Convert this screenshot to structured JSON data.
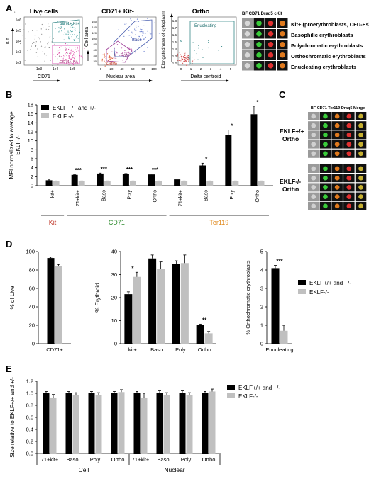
{
  "panels": {
    "A": "A",
    "B": "B",
    "C": "C",
    "D": "D",
    "E": "E"
  },
  "panel_a": {
    "plot1": {
      "title": "Live cells",
      "xlabel": "CD71",
      "ylabel": "Kit",
      "gate_label": "CD71+ Kit-",
      "gate_label2": "CD71+ Kit+",
      "xticks": [
        "1e3",
        "1e4",
        "1e5"
      ],
      "yticks": [
        "1e6",
        "1e5",
        "1e4",
        "1e3",
        "1e2"
      ]
    },
    "plot2": {
      "title": "CD71+ Kit-",
      "xlabel": "Nuclear area",
      "ylabel": "Cell area",
      "gate_baso": "Baso",
      "gate_poly": "Poly",
      "gate_ortho": "Ortho",
      "xticks": [
        "0",
        "20",
        "40",
        "60",
        "80",
        "100"
      ],
      "yticks": [
        "20",
        "40",
        "60",
        "80",
        "100",
        "120",
        "140",
        "160"
      ]
    },
    "plot3": {
      "title": "Ortho",
      "xlabel": "Delta centroid",
      "ylabel": "Elongatedness of cytoplasm",
      "gate_label": "Enucleating",
      "xticks": [
        "0",
        "1",
        "2",
        "3",
        "4",
        "5"
      ],
      "yticks": [
        "1.8",
        "1.7",
        "1.6",
        "1.5",
        "1.4",
        "1.3",
        "1.2"
      ]
    },
    "image_header": "BF CD71 Draq5 cKit",
    "legend": [
      "Kit+ (proerythroblasts, CFU-Es)",
      "Basophilic erythroblasts",
      "Polychromatic erythroblasts",
      "Orthochromatic erythroblasts",
      "Enucleating erythroblasts"
    ]
  },
  "panel_c": {
    "header": "BF CD71 Ter119 Draq5 Merge",
    "group1": "EKLF+/+ Ortho",
    "group1_line1": "EKLF+/+",
    "group1_line2": "Ortho",
    "group2_line1": "EKLF-/-",
    "group2_line2": "Ortho"
  },
  "colors": {
    "black": "#000000",
    "grey": "#c0c0c0",
    "kit": "#c0392b",
    "cd71": "#2e8b2e",
    "ter119": "#e08a1e"
  },
  "chart_data": [
    {
      "type": "bar",
      "panel": "B",
      "ylabel": "MFI normalized to average EKLF-/-",
      "ylim": [
        0,
        18
      ],
      "yticks": [
        0,
        2,
        4,
        6,
        8,
        10,
        12,
        14,
        16,
        18
      ],
      "categories": [
        "kit+",
        "71+kit+",
        "Baso",
        "Poly",
        "Ortho",
        "71+kit+",
        "Baso",
        "Poly",
        "Ortho"
      ],
      "groups": [
        {
          "label": "Kit",
          "color": "#c0392b",
          "start": 0,
          "end": 0
        },
        {
          "label": "CD71",
          "color": "#2e8b2e",
          "start": 1,
          "end": 4
        },
        {
          "label": "Ter119",
          "color": "#e08a1e",
          "start": 5,
          "end": 8
        }
      ],
      "series": [
        {
          "name": "EKLF +/+ and +/-",
          "color": "#000000",
          "values": [
            1.2,
            2.4,
            2.7,
            2.6,
            2.5,
            1.4,
            4.5,
            11.3,
            15.9
          ],
          "errors": [
            0.1,
            0.1,
            0.1,
            0.1,
            0.1,
            0.1,
            0.5,
            1.1,
            1.8
          ]
        },
        {
          "name": "EKLF -/-",
          "color": "#c0c0c0",
          "values": [
            1.0,
            1.0,
            1.0,
            1.0,
            1.0,
            1.0,
            1.0,
            1.0,
            1.0
          ],
          "errors": [
            0.05,
            0.05,
            0.05,
            0.05,
            0.05,
            0.05,
            0.05,
            0.05,
            0.05
          ]
        }
      ],
      "significance": [
        "",
        "***",
        "***",
        "***",
        "***",
        "",
        "*",
        "*",
        "*"
      ],
      "legend": [
        "EKLF +/+ and +/-",
        "EKLF -/-"
      ]
    },
    {
      "type": "bar",
      "panel": "D1",
      "ylabel": "% of Live",
      "ylim": [
        0,
        100
      ],
      "yticks": [
        0,
        20,
        40,
        60,
        80,
        100
      ],
      "categories": [
        "CD71+"
      ],
      "series": [
        {
          "name": "EKLF+/+ and +/-",
          "color": "#000000",
          "values": [
            93
          ],
          "errors": [
            1
          ]
        },
        {
          "name": "EKLF-/-",
          "color": "#c0c0c0",
          "values": [
            84
          ],
          "errors": [
            2
          ]
        }
      ],
      "significance": [
        ""
      ]
    },
    {
      "type": "bar",
      "panel": "D2",
      "ylabel": "% Erythroid",
      "ylim": [
        0,
        40
      ],
      "yticks": [
        0,
        10,
        20,
        30,
        40
      ],
      "categories": [
        "kit+",
        "Baso",
        "Poly",
        "Ortho"
      ],
      "series": [
        {
          "name": "EKLF+/+ and +/-",
          "color": "#000000",
          "values": [
            21.5,
            37,
            34.5,
            8
          ],
          "errors": [
            1,
            1.5,
            1.5,
            0.5
          ]
        },
        {
          "name": "EKLF-/-",
          "color": "#c0c0c0",
          "values": [
            29,
            32.5,
            35,
            4.5
          ],
          "errors": [
            2,
            3,
            3.5,
            0.8
          ]
        }
      ],
      "significance": [
        "*",
        "",
        "",
        "**"
      ]
    },
    {
      "type": "bar",
      "panel": "D3",
      "ylabel": "% Orthochromatic erythroblasts",
      "ylim": [
        0,
        5
      ],
      "yticks": [
        0,
        1,
        2,
        3,
        4,
        5
      ],
      "categories": [
        "Enucleating"
      ],
      "series": [
        {
          "name": "EKLF+/+ and +/-",
          "color": "#000000",
          "values": [
            4.1
          ],
          "errors": [
            0.15
          ]
        },
        {
          "name": "EKLF-/-",
          "color": "#c0c0c0",
          "values": [
            0.7
          ],
          "errors": [
            0.3
          ]
        }
      ],
      "significance": [
        "***"
      ],
      "legend": [
        "EKLF+/+ and +/-",
        "EKLF-/-"
      ]
    },
    {
      "type": "bar",
      "panel": "E",
      "ylabel": "Size relative to EKLF+/+ and +/-",
      "ylim": [
        0,
        1.2
      ],
      "yticks": [
        0,
        0.2,
        0.4,
        0.6,
        0.8,
        1.0,
        1.2
      ],
      "categories": [
        "71+kit+",
        "Baso",
        "Poly",
        "Ortho",
        "71+kit+",
        "Baso",
        "Poly",
        "Ortho"
      ],
      "groups": [
        {
          "label": "Cell",
          "start": 0,
          "end": 3
        },
        {
          "label": "Nuclear",
          "start": 4,
          "end": 7
        }
      ],
      "series": [
        {
          "name": "EKLF+/+ and +/-",
          "color": "#000000",
          "values": [
            1.0,
            1.0,
            1.0,
            1.0,
            1.0,
            1.0,
            1.0,
            1.0
          ],
          "errors": [
            0.03,
            0.03,
            0.03,
            0.03,
            0.03,
            0.04,
            0.04,
            0.03
          ]
        },
        {
          "name": "EKLF-/-",
          "color": "#c0c0c0",
          "values": [
            0.93,
            0.97,
            0.97,
            1.02,
            0.93,
            0.97,
            0.97,
            1.03
          ],
          "errors": [
            0.05,
            0.04,
            0.04,
            0.04,
            0.07,
            0.04,
            0.04,
            0.04
          ]
        }
      ],
      "legend": [
        "EKLF+/+ and +/-",
        "EKLF-/-"
      ]
    }
  ]
}
